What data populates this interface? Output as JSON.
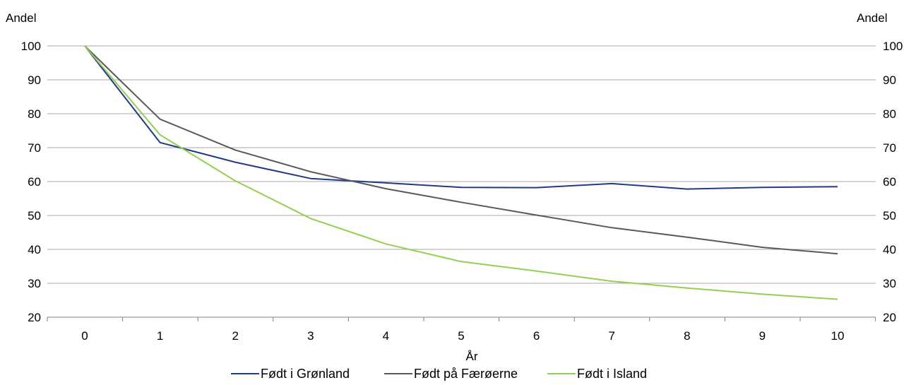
{
  "chart_data": {
    "type": "line",
    "title": "",
    "xlabel": "År",
    "ylabel_left": "Andel",
    "ylabel_right": "Andel",
    "x": [
      0,
      1,
      2,
      3,
      4,
      5,
      6,
      7,
      8,
      9,
      10
    ],
    "ylim": [
      20,
      100
    ],
    "yticks": [
      20,
      30,
      40,
      50,
      60,
      70,
      80,
      90,
      100
    ],
    "grid": true,
    "legend_position": "bottom",
    "series": [
      {
        "name": "Født i Grønland",
        "color": "#1f3a8a",
        "values": [
          100,
          71.5,
          65.7,
          60.9,
          59.6,
          58.3,
          58.2,
          59.4,
          57.8,
          58.3,
          58.5
        ]
      },
      {
        "name": "Født på Færøerne",
        "color": "#595959",
        "values": [
          100,
          78.4,
          69.3,
          62.9,
          57.9,
          53.9,
          50.1,
          46.4,
          43.6,
          40.6,
          38.7
        ]
      },
      {
        "name": "Født i Island",
        "color": "#92d050",
        "values": [
          100,
          73.8,
          60.2,
          49.1,
          41.6,
          36.4,
          33.6,
          30.6,
          28.6,
          26.8,
          25.3
        ]
      }
    ]
  }
}
